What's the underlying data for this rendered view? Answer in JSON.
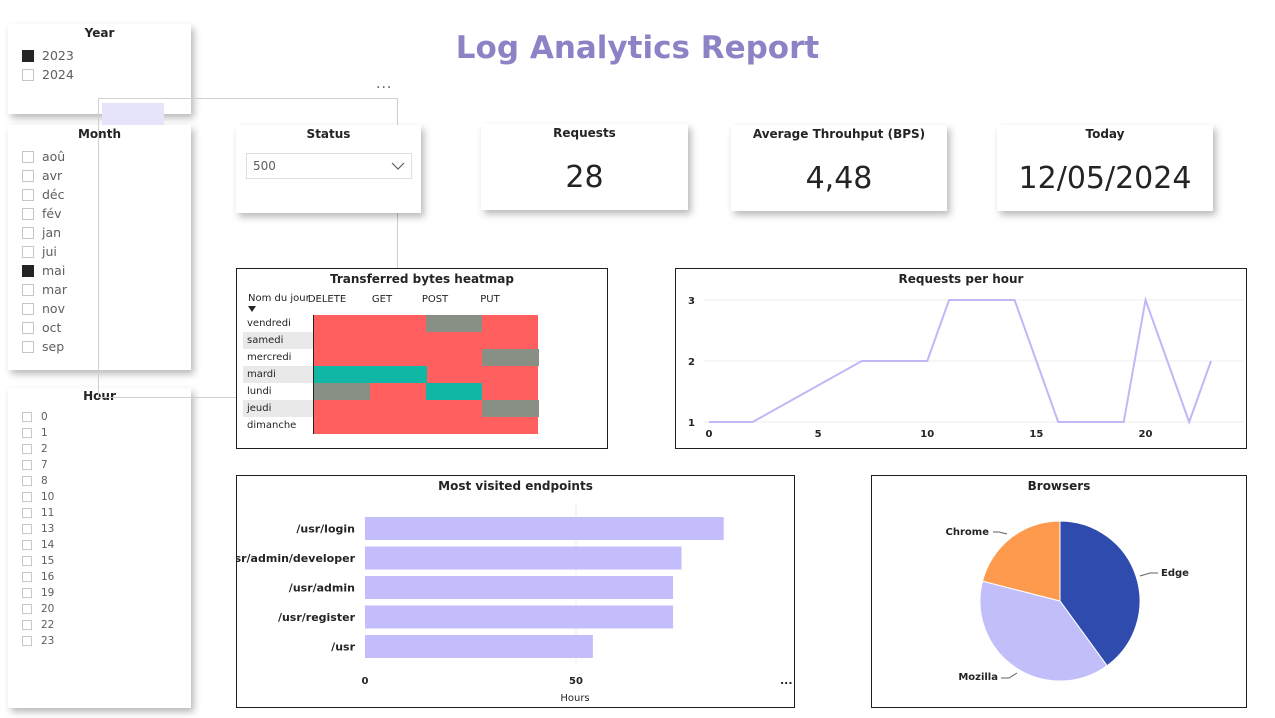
{
  "title": "Log Analytics Report",
  "year_slicer": {
    "title": "Year",
    "items": [
      {
        "label": "2023",
        "checked": true
      },
      {
        "label": "2024",
        "checked": false
      }
    ]
  },
  "month_slicer": {
    "title": "Month",
    "items": [
      {
        "label": "aoû",
        "checked": false
      },
      {
        "label": "avr",
        "checked": false
      },
      {
        "label": "déc",
        "checked": false
      },
      {
        "label": "fév",
        "checked": false
      },
      {
        "label": "jan",
        "checked": false
      },
      {
        "label": "jui",
        "checked": false
      },
      {
        "label": "mai",
        "checked": true
      },
      {
        "label": "mar",
        "checked": false
      },
      {
        "label": "nov",
        "checked": false
      },
      {
        "label": "oct",
        "checked": false
      },
      {
        "label": "sep",
        "checked": false
      }
    ]
  },
  "hour_slicer": {
    "title": "Hour",
    "items": [
      "0",
      "1",
      "2",
      "7",
      "8",
      "10",
      "11",
      "13",
      "14",
      "15",
      "16",
      "19",
      "20",
      "22",
      "23"
    ]
  },
  "more_options": "...",
  "status_slicer": {
    "title": "Status",
    "value": "500"
  },
  "kpis": {
    "requests": {
      "label": "Requests",
      "value": "28"
    },
    "throughput": {
      "label": "Average Throuhput (BPS)",
      "value": "4,48"
    },
    "today": {
      "label": "Today",
      "value": "12/05/2024"
    }
  },
  "heatmap": {
    "title": "Transferred bytes heatmap",
    "row_header": "Nom du jour",
    "columns": [
      "DELETE",
      "GET",
      "POST",
      "PUT"
    ],
    "rows": [
      "vendredi",
      "samedi",
      "mercredi",
      "mardi",
      "lundi",
      "jeudi",
      "dimanche"
    ],
    "colors": {
      "low": "#ff5f5f",
      "mid": "#888f84",
      "high": "#10b7a5"
    }
  },
  "chart_data": [
    {
      "type": "line",
      "title": "Requests per hour",
      "x": [
        0,
        2,
        7,
        10,
        11,
        14,
        16,
        19,
        20,
        22,
        23
      ],
      "series": [
        {
          "values": [
            1,
            1,
            2,
            2,
            3,
            3,
            1,
            1,
            3,
            1,
            2
          ]
        }
      ],
      "x_ticks": [
        0,
        5,
        10,
        15,
        20
      ],
      "y_ticks": [
        1,
        2,
        3
      ],
      "xlim": [
        0,
        23
      ],
      "ylim": [
        1,
        3
      ],
      "grid": true,
      "color": "#bfb8f7"
    },
    {
      "type": "bar",
      "orientation": "horizontal",
      "title": "Most visited endpoints",
      "categories": [
        "/usr/login",
        "/usr/admin/developer",
        "/usr/admin",
        "/usr/register",
        "/usr"
      ],
      "values": [
        85,
        75,
        73,
        73,
        54
      ],
      "xlabel": "Hours",
      "x_ticks": [
        0,
        50
      ],
      "xlim": [
        0,
        100
      ],
      "color": "#c3bdfb",
      "more_label": "..."
    },
    {
      "type": "pie",
      "title": "Browsers",
      "slices": [
        {
          "label": "Edge",
          "value": 40,
          "color": "#2f4bae"
        },
        {
          "label": "Mozilla",
          "value": 39,
          "color": "#c2befa"
        },
        {
          "label": "Chrome",
          "value": 21,
          "color": "#fe9a4e"
        }
      ]
    }
  ]
}
